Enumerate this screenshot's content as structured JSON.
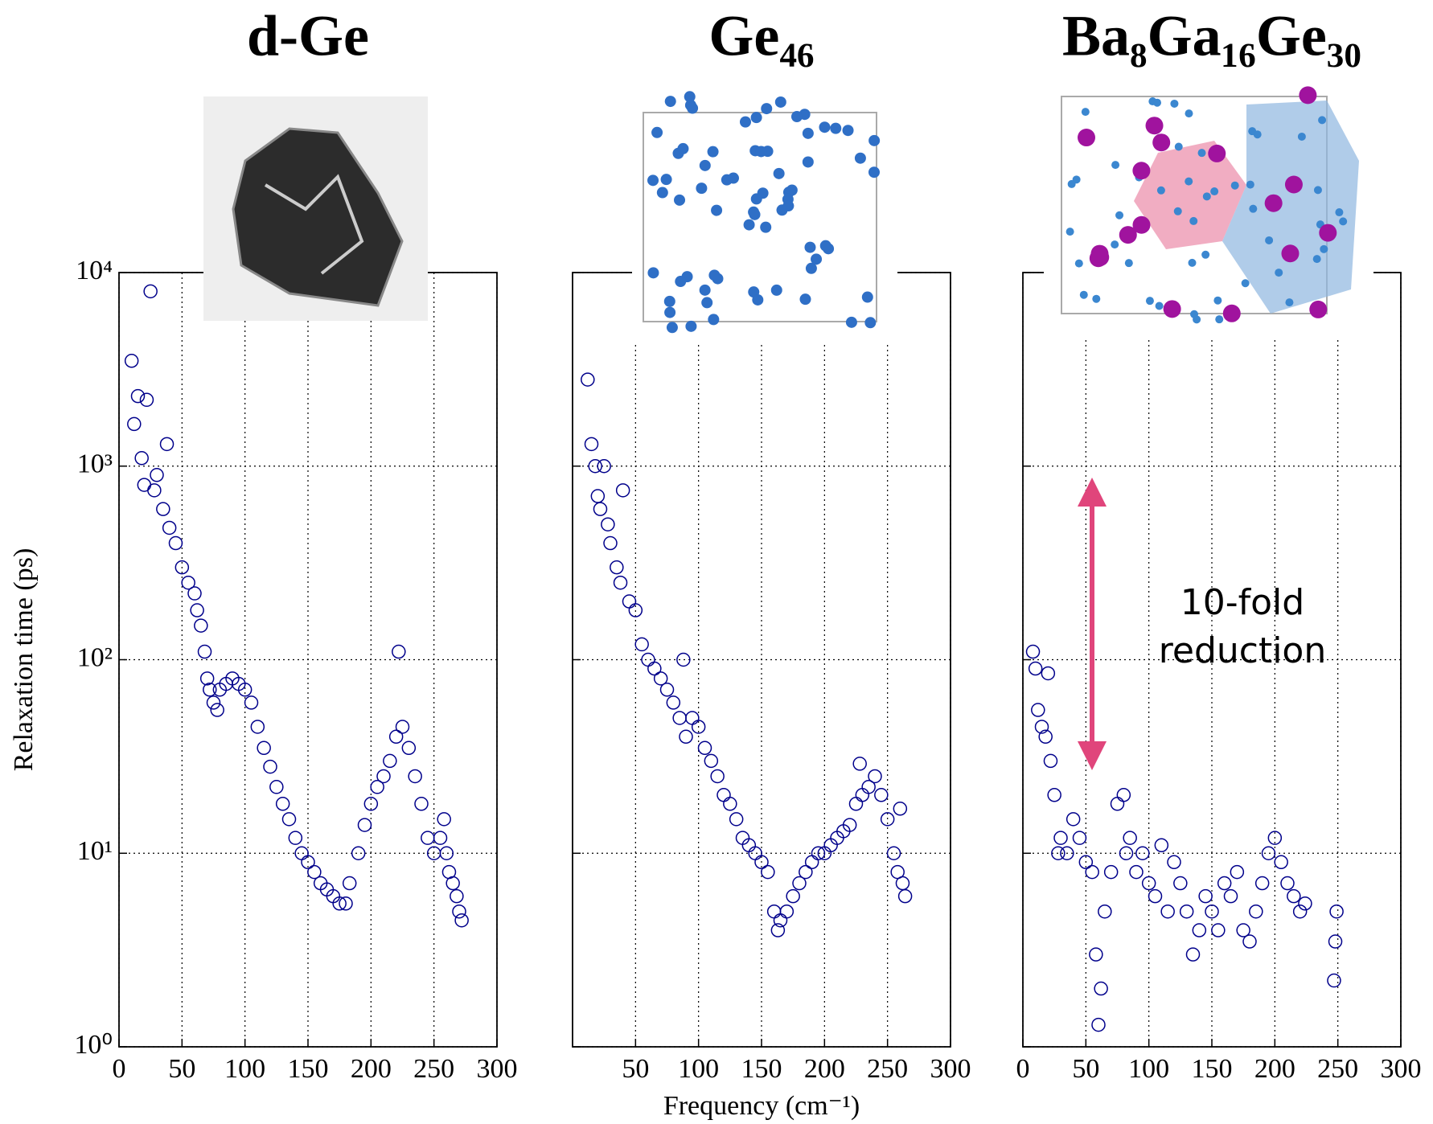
{
  "chart_data": [
    {
      "type": "scatter",
      "title": "d-Ge",
      "ylabel": "Relaxation time (ps)",
      "yscale": "log",
      "grid": true,
      "color": "#00008b",
      "xlim": [
        0,
        300
      ],
      "xticks": [
        0,
        50,
        100,
        150,
        200,
        250,
        300
      ],
      "ylim": [
        1,
        10000
      ],
      "yticks": [
        {
          "value": 1,
          "label": "10⁰"
        },
        {
          "value": 10,
          "label": "10¹"
        },
        {
          "value": 100,
          "label": "10²"
        },
        {
          "value": 1000,
          "label": "10³"
        },
        {
          "value": 10000,
          "label": "10⁴"
        }
      ],
      "x": [
        10,
        12,
        15,
        18,
        20,
        22,
        25,
        28,
        30,
        35,
        38,
        40,
        45,
        50,
        55,
        60,
        62,
        65,
        68,
        70,
        72,
        75,
        78,
        80,
        85,
        90,
        95,
        100,
        105,
        110,
        115,
        120,
        125,
        130,
        135,
        140,
        145,
        150,
        155,
        160,
        165,
        170,
        175,
        180,
        183,
        190,
        195,
        200,
        205,
        210,
        215,
        220,
        222,
        225,
        230,
        235,
        240,
        245,
        250,
        255,
        258,
        260,
        262,
        265,
        268,
        270,
        272
      ],
      "y": [
        3500,
        1650,
        2300,
        1100,
        800,
        2200,
        8000,
        750,
        900,
        600,
        1300,
        480,
        400,
        300,
        250,
        220,
        180,
        150,
        110,
        80,
        70,
        60,
        55,
        70,
        75,
        80,
        75,
        70,
        60,
        45,
        35,
        28,
        22,
        18,
        15,
        12,
        10,
        9,
        8,
        7,
        6.5,
        6,
        5.5,
        5.5,
        7,
        10,
        14,
        18,
        22,
        25,
        30,
        40,
        110,
        45,
        35,
        25,
        18,
        12,
        10,
        12,
        15,
        10,
        8,
        7,
        6,
        5,
        4.5
      ]
    },
    {
      "type": "scatter",
      "title": "Ge₄₆",
      "xlabel": "Frequency (cm⁻¹)",
      "yscale": "log",
      "grid": true,
      "color": "#00008b",
      "xlim": [
        0,
        300
      ],
      "xticks": [
        50,
        100,
        150,
        200,
        250,
        300
      ],
      "ylim": [
        1,
        10000
      ],
      "yticks": [
        1,
        10,
        100,
        1000,
        10000
      ],
      "x": [
        12,
        15,
        18,
        20,
        22,
        25,
        28,
        30,
        35,
        38,
        40,
        45,
        50,
        55,
        60,
        65,
        70,
        75,
        80,
        85,
        88,
        90,
        95,
        100,
        105,
        110,
        115,
        120,
        125,
        130,
        135,
        140,
        145,
        150,
        155,
        160,
        163,
        165,
        170,
        175,
        180,
        185,
        190,
        195,
        200,
        205,
        210,
        215,
        220,
        225,
        228,
        230,
        235,
        240,
        245,
        250,
        255,
        258,
        260,
        262,
        264
      ],
      "y": [
        2800,
        1300,
        1000,
        700,
        600,
        1000,
        500,
        400,
        300,
        250,
        750,
        200,
        180,
        120,
        100,
        90,
        80,
        70,
        60,
        50,
        100,
        40,
        50,
        45,
        35,
        30,
        25,
        20,
        18,
        15,
        12,
        11,
        10,
        9,
        8,
        5,
        4,
        4.5,
        5,
        6,
        7,
        8,
        9,
        10,
        10,
        11,
        12,
        13,
        14,
        18,
        29,
        20,
        22,
        25,
        20,
        15,
        10,
        8,
        17,
        7,
        6
      ]
    },
    {
      "type": "scatter",
      "title": "Ba₈Ga₁₆Ge₃₀",
      "annotation": "10-fold reduction",
      "yscale": "log",
      "grid": true,
      "color": "#00008b",
      "xlim": [
        0,
        300
      ],
      "xticks": [
        0,
        50,
        100,
        150,
        200,
        250,
        300
      ],
      "ylim": [
        1,
        10000
      ],
      "yticks": [
        1,
        10,
        100,
        1000,
        10000
      ],
      "x": [
        8,
        10,
        12,
        15,
        18,
        20,
        22,
        25,
        28,
        30,
        35,
        40,
        45,
        50,
        55,
        58,
        60,
        62,
        65,
        70,
        75,
        80,
        82,
        85,
        90,
        95,
        100,
        105,
        110,
        115,
        120,
        125,
        130,
        135,
        140,
        145,
        150,
        155,
        160,
        165,
        170,
        175,
        180,
        185,
        190,
        195,
        200,
        205,
        210,
        215,
        220,
        224,
        247,
        248,
        249
      ],
      "y": [
        110,
        90,
        55,
        45,
        40,
        85,
        30,
        20,
        10,
        12,
        10,
        15,
        12,
        9,
        8,
        3,
        1.3,
        2,
        5,
        8,
        18,
        20,
        10,
        12,
        8,
        10,
        7,
        6,
        11,
        5,
        9,
        7,
        5,
        3,
        4,
        6,
        5,
        4,
        7,
        6,
        8,
        4,
        3.5,
        5,
        7,
        10,
        12,
        9,
        7,
        6,
        5,
        5.5,
        2.2,
        3.5,
        5
      ]
    }
  ]
}
